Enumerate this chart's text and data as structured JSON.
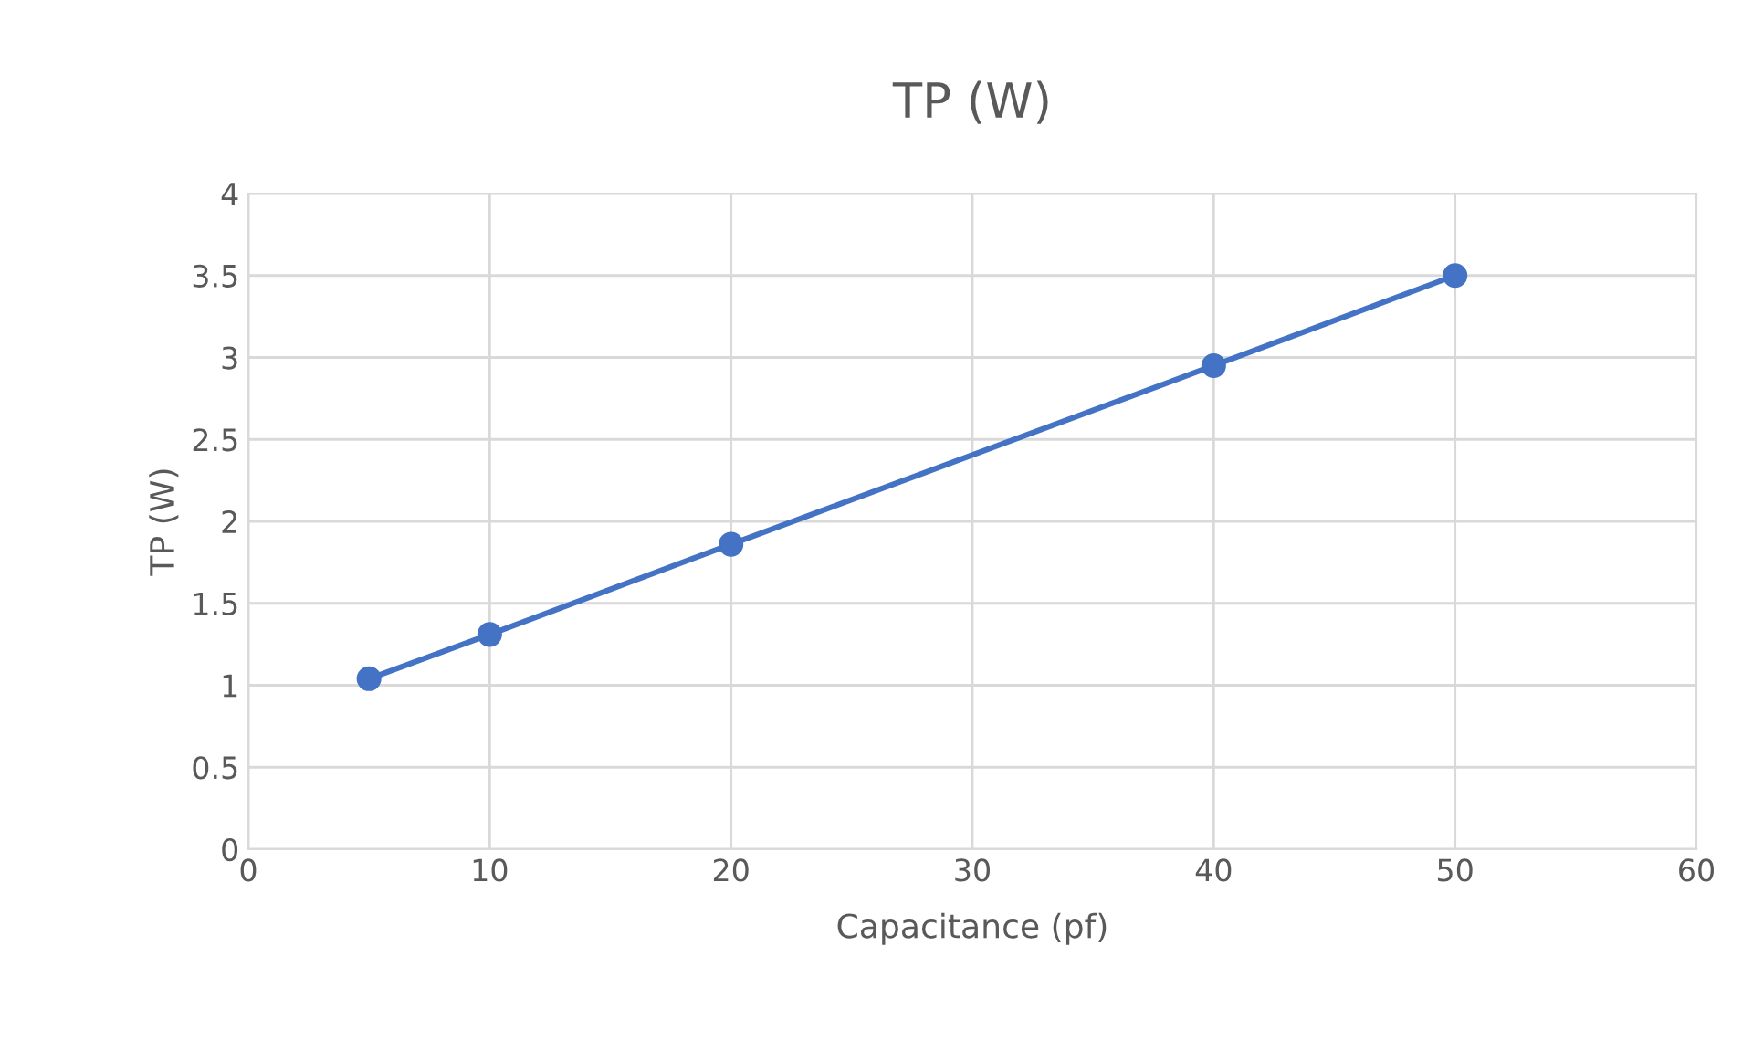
{
  "chart_data": {
    "type": "line",
    "title": "TP (W)",
    "xlabel": "Capacitance (pf)",
    "ylabel": "TP (W)",
    "x": [
      5,
      10,
      20,
      40,
      50
    ],
    "series": [
      {
        "color": "#4472c4",
        "values": [
          1.04,
          1.31,
          1.86,
          2.95,
          3.5
        ]
      }
    ],
    "xlim": [
      0,
      60
    ],
    "xticks": [
      0,
      10,
      20,
      30,
      40,
      50,
      60
    ],
    "ylim": [
      0,
      4
    ],
    "yticks": [
      0,
      0.5,
      1,
      1.5,
      2,
      2.5,
      3,
      3.5,
      4
    ],
    "grid": true,
    "marker": "circle",
    "line_style": "solid"
  }
}
